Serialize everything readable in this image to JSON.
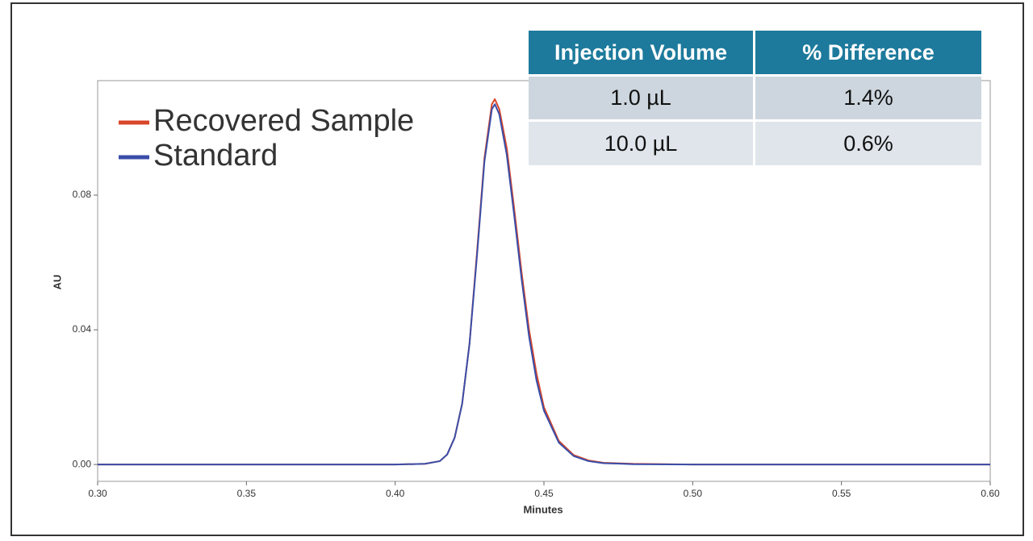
{
  "chart_data": {
    "type": "line",
    "legend": [
      "Recovered Sample",
      "Standard"
    ],
    "x_label": "Minutes",
    "y_label": "AU",
    "x": [
      0.3,
      0.35,
      0.4,
      0.41,
      0.415,
      0.4175,
      0.42,
      0.4225,
      0.425,
      0.4275,
      0.43,
      0.4325,
      0.4335,
      0.435,
      0.4375,
      0.44,
      0.4425,
      0.445,
      0.4475,
      0.45,
      0.455,
      0.46,
      0.465,
      0.47,
      0.48,
      0.5,
      0.55,
      0.6
    ],
    "series": [
      {
        "name": "Recovered Sample",
        "color": "#d9462b",
        "values": [
          0,
          0,
          0,
          0.0002,
          0.001,
          0.003,
          0.008,
          0.018,
          0.036,
          0.063,
          0.091,
          0.107,
          0.1085,
          0.1055,
          0.094,
          0.076,
          0.057,
          0.04,
          0.027,
          0.017,
          0.007,
          0.0028,
          0.0012,
          0.0005,
          0.0002,
          0,
          0,
          0
        ]
      },
      {
        "name": "Standard",
        "color": "#3a4ea8",
        "values": [
          0,
          0,
          0,
          0.0002,
          0.001,
          0.003,
          0.008,
          0.018,
          0.036,
          0.062,
          0.09,
          0.1055,
          0.107,
          0.104,
          0.092,
          0.074,
          0.055,
          0.038,
          0.025,
          0.016,
          0.0065,
          0.0025,
          0.001,
          0.0004,
          0.0001,
          0,
          0,
          0
        ]
      }
    ],
    "xlim": [
      0.3,
      0.6
    ],
    "xticks": [
      {
        "value": 0.3,
        "label": "0.30"
      },
      {
        "value": 0.35,
        "label": "0.35"
      },
      {
        "value": 0.4,
        "label": "0.40"
      },
      {
        "value": 0.45,
        "label": "0.45"
      },
      {
        "value": 0.5,
        "label": "0.50"
      },
      {
        "value": 0.55,
        "label": "0.55"
      },
      {
        "value": 0.6,
        "label": "0.60"
      }
    ],
    "ylim": [
      -0.005,
      0.114
    ],
    "yticks": [
      {
        "value": 0,
        "label": "0.00"
      },
      {
        "value": 0.04,
        "label": "0.04"
      },
      {
        "value": 0.08,
        "label": "0.08"
      }
    ],
    "grid": false
  },
  "table": {
    "header": [
      "Injection Volume",
      "% Difference"
    ],
    "rows": [
      [
        "1.0 µL",
        "1.4%"
      ],
      [
        "10.0 µL",
        "0.6%"
      ]
    ]
  }
}
